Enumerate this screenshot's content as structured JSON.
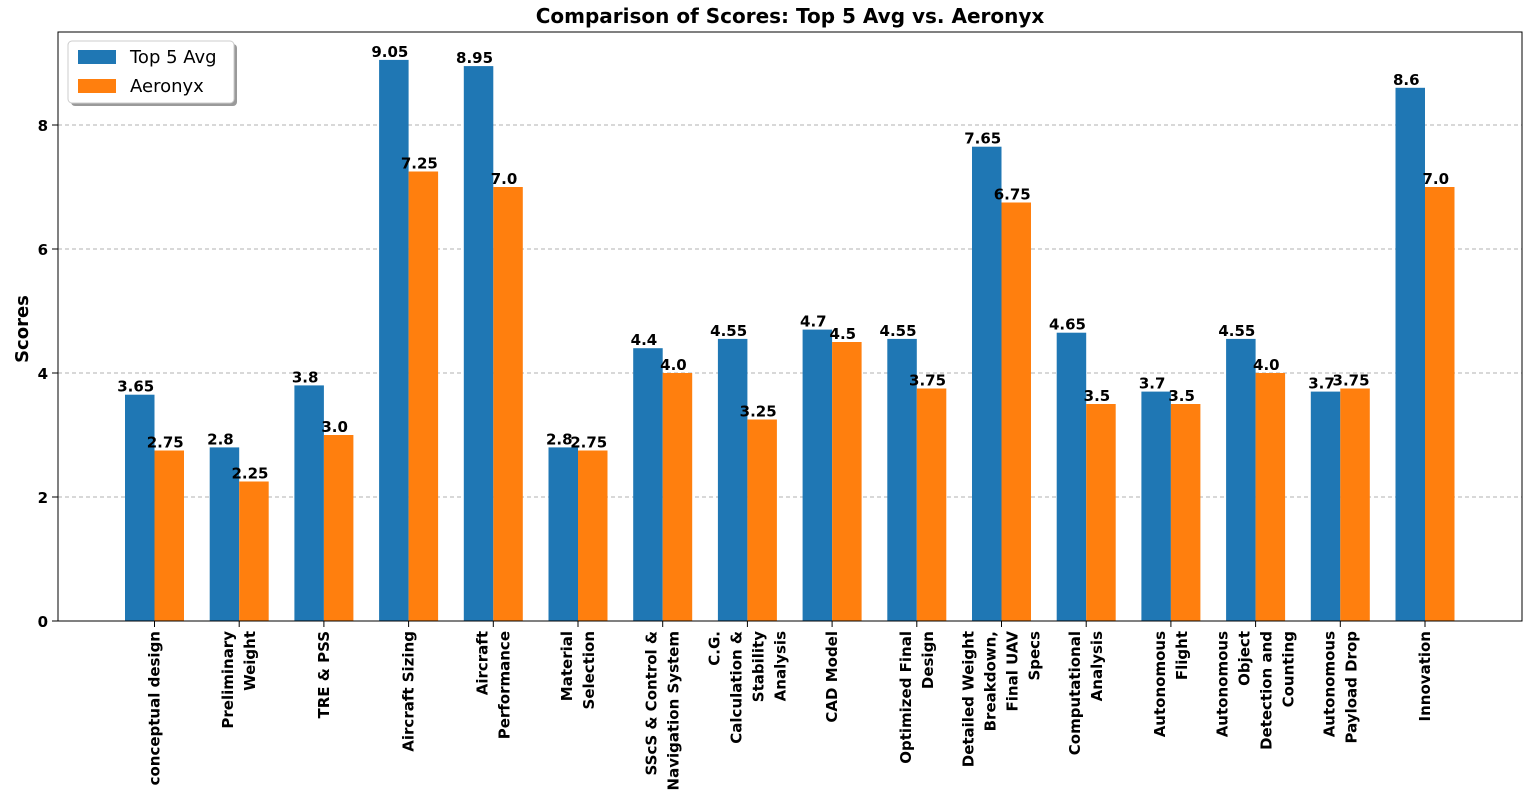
{
  "chart_data": {
    "type": "bar",
    "title": "Comparison of Scores: Top 5 Avg vs. Aeronyx",
    "xlabel": "",
    "ylabel": "Scores",
    "ylim": [
      0,
      9.5
    ],
    "yticks": [
      0,
      2,
      4,
      6,
      8
    ],
    "grid": "y-dashed",
    "legend_position": "top-left",
    "categories": [
      [
        "conceptual design"
      ],
      [
        "Preliminary",
        "Weight"
      ],
      [
        "TRE & PSS"
      ],
      [
        "Aircraft Sizing"
      ],
      [
        "Aircraft",
        "Performance"
      ],
      [
        "Material",
        "Selection"
      ],
      [
        "SScS & Control &",
        "Navigation System"
      ],
      [
        "C.G.",
        "Calculation &",
        "Stability",
        "Analysis"
      ],
      [
        "CAD Model"
      ],
      [
        "Optimized Final",
        "Design"
      ],
      [
        "Detailed Weight",
        "Breakdown,",
        "Final UAV",
        "Specs"
      ],
      [
        "Computational",
        "Analysis"
      ],
      [
        "Autonomous",
        "Flight"
      ],
      [
        "Autonomous",
        "Object",
        "Detection and",
        "Counting"
      ],
      [
        "Autonomous",
        "Payload Drop"
      ],
      [
        "Innovation"
      ]
    ],
    "series": [
      {
        "name": "Top 5 Avg",
        "color": "#1f77b4",
        "values": [
          3.65,
          2.8,
          3.8,
          9.05,
          8.95,
          2.8,
          4.4,
          4.55,
          4.7,
          4.55,
          7.65,
          4.65,
          3.7,
          4.55,
          3.7,
          8.6
        ],
        "labels": [
          "3.65",
          "2.8",
          "3.8",
          "9.05",
          "8.95",
          "2.8",
          "4.4",
          "4.55",
          "4.7",
          "4.55",
          "7.65",
          "4.65",
          "3.7",
          "4.55",
          "3.7",
          "8.6"
        ]
      },
      {
        "name": "Aeronyx",
        "color": "#ff7f0e",
        "values": [
          2.75,
          2.25,
          3.0,
          7.25,
          7.0,
          2.75,
          4.0,
          3.25,
          4.5,
          3.75,
          6.75,
          3.5,
          3.5,
          4.0,
          3.75,
          7.0
        ],
        "labels": [
          "2.75",
          "2.25",
          "3.0",
          "7.25",
          "7.0",
          "2.75",
          "4.0",
          "3.25",
          "4.5",
          "3.75",
          "6.75",
          "3.5",
          "3.5",
          "4.0",
          "3.75",
          "7.0"
        ]
      }
    ]
  }
}
